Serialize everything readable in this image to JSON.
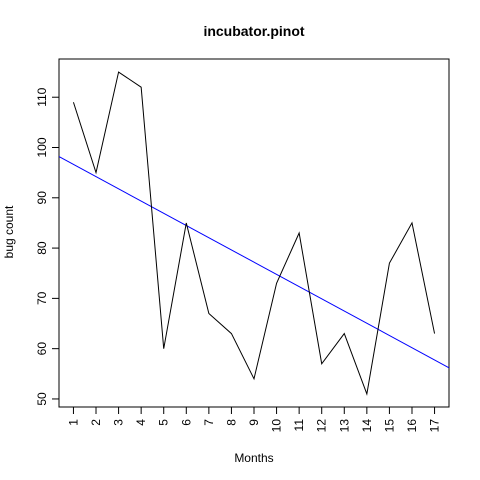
{
  "chart_data": {
    "type": "line",
    "title": "incubator.pinot",
    "xlabel": "Months",
    "ylabel": "bug count",
    "x": [
      1,
      2,
      3,
      4,
      5,
      6,
      7,
      8,
      9,
      10,
      11,
      12,
      13,
      14,
      15,
      16,
      17
    ],
    "x_tick_labels": [
      "1",
      "2",
      "3",
      "4",
      "5",
      "6",
      "7",
      "8",
      "9",
      "10",
      "11",
      "12",
      "13",
      "14",
      "15",
      "16",
      "17"
    ],
    "y_ticks": [
      50,
      60,
      70,
      80,
      90,
      100,
      110
    ],
    "y_tick_labels": [
      "50",
      "60",
      "70",
      "80",
      "90",
      "100",
      "110"
    ],
    "xlim": [
      0.36,
      17.64
    ],
    "ylim": [
      48.4,
      117.6
    ],
    "series": [
      {
        "values": [
          109,
          95,
          115,
          112,
          60,
          85,
          67,
          63,
          54,
          73,
          83,
          57,
          63,
          51,
          77,
          85,
          63
        ],
        "color": "#000000"
      }
    ],
    "trend_line": {
      "type": "linear-fit",
      "color": "#0000ff",
      "y_at_xmin": 98.2,
      "y_at_xmax": 56.2
    },
    "grid": false,
    "legend": "none"
  }
}
